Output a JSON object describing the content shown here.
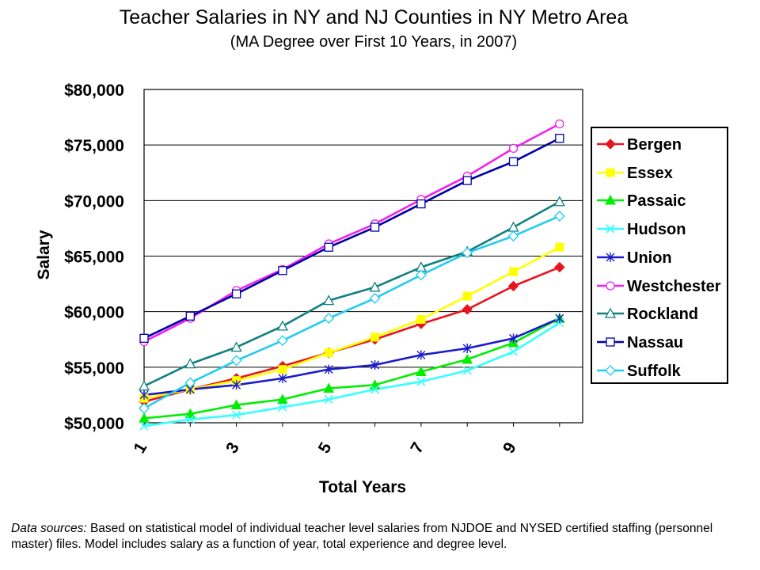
{
  "title": "Teacher Salaries in NY and NJ Counties in NY Metro Area",
  "subtitle": "(MA Degree over First 10 Years, in 2007)",
  "footnote": {
    "label": "Data sources:",
    "text": " Based on statistical model of individual teacher level salaries from NJDOE and NYSED certified staffing (personnel master) files. Model includes salary as a function of year, total experience and degree level."
  },
  "chart_data": {
    "type": "line",
    "title": "Teacher Salaries in NY and NJ Counties in NY Metro Area",
    "subtitle": "(MA Degree over First 10 Years, in 2007)",
    "xlabel": "Total Years",
    "ylabel": "Salary",
    "x": [
      1,
      2,
      3,
      4,
      5,
      6,
      7,
      8,
      9,
      10
    ],
    "x_tick_labels": [
      "1",
      "3",
      "5",
      "7",
      "9"
    ],
    "xlim": [
      1,
      10.5
    ],
    "ylim": [
      50000,
      80000
    ],
    "y_tick_labels": [
      "$50,000",
      "$55,000",
      "$60,000",
      "$65,000",
      "$70,000",
      "$75,000",
      "$80,000"
    ],
    "grid": "horizontal",
    "legend_position": "right",
    "series": [
      {
        "name": "Bergen",
        "color": "#e8141e",
        "marker": "diamond-filled",
        "values": [
          51900,
          53000,
          54000,
          55100,
          56300,
          57500,
          58900,
          60200,
          62300,
          64000
        ]
      },
      {
        "name": "Essex",
        "color": "#ffff00",
        "marker": "square-filled",
        "values": [
          52200,
          53000,
          53800,
          54800,
          56300,
          57700,
          59300,
          61400,
          63600,
          65800
        ]
      },
      {
        "name": "Passaic",
        "color": "#00ee00",
        "marker": "triangle-filled",
        "values": [
          50400,
          50800,
          51600,
          52100,
          53100,
          53400,
          54600,
          55700,
          57200,
          59400
        ]
      },
      {
        "name": "Hudson",
        "color": "#33ffff",
        "marker": "x",
        "values": [
          49700,
          50300,
          50700,
          51400,
          52100,
          53000,
          53700,
          54700,
          56400,
          59000
        ]
      },
      {
        "name": "Union",
        "color": "#1a1acc",
        "marker": "star",
        "values": [
          52500,
          53000,
          53400,
          54000,
          54800,
          55200,
          56100,
          56700,
          57600,
          59400
        ]
      },
      {
        "name": "Westchester",
        "color": "#ee22ee",
        "marker": "circle-open",
        "values": [
          57300,
          59400,
          61900,
          63800,
          66100,
          67900,
          70100,
          72200,
          74700,
          76900
        ]
      },
      {
        "name": "Rockland",
        "color": "#118080",
        "marker": "triangle-open",
        "values": [
          53300,
          55300,
          56800,
          58700,
          61000,
          62200,
          64000,
          65400,
          67600,
          69900
        ]
      },
      {
        "name": "Nassau",
        "color": "#0000a8",
        "marker": "square-open",
        "values": [
          57600,
          59600,
          61600,
          63700,
          65800,
          67600,
          69700,
          71800,
          73500,
          75600
        ]
      },
      {
        "name": "Suffolk",
        "color": "#22ccee",
        "marker": "diamond-open",
        "values": [
          51300,
          53600,
          55600,
          57400,
          59400,
          61200,
          63300,
          65300,
          66800,
          68600
        ]
      }
    ]
  }
}
